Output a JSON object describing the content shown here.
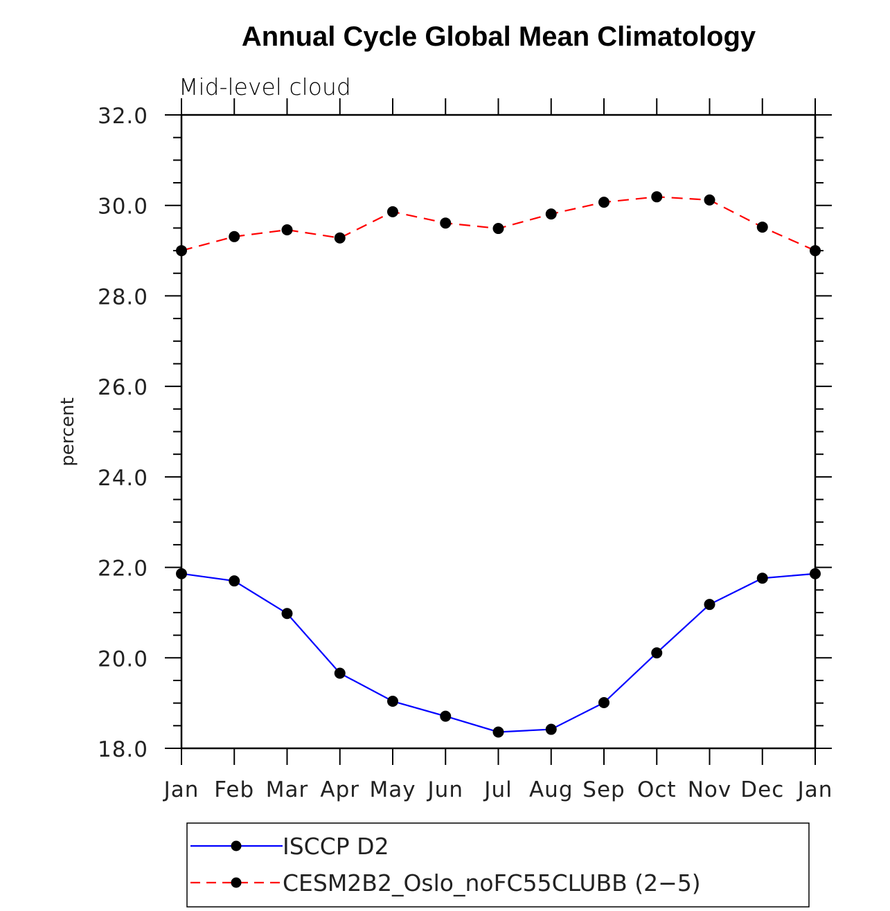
{
  "chart_data": {
    "type": "line",
    "title": "Annual Cycle Global Mean Climatology",
    "subtitle": "Mid-level cloud",
    "xlabel": "",
    "ylabel": "percent",
    "categories": [
      "Jan",
      "Feb",
      "Mar",
      "Apr",
      "May",
      "Jun",
      "Jul",
      "Aug",
      "Sep",
      "Oct",
      "Nov",
      "Dec",
      "Jan"
    ],
    "ylim": [
      18.0,
      32.0
    ],
    "yticks": [
      18.0,
      20.0,
      22.0,
      24.0,
      26.0,
      28.0,
      30.0,
      32.0
    ],
    "ytick_labels": [
      "18.0",
      "20.0",
      "22.0",
      "24.0",
      "26.0",
      "28.0",
      "30.0",
      "32.0"
    ],
    "yminor_step": 0.5,
    "grid": false,
    "legend_position": "bottom",
    "series": [
      {
        "name": "ISCCP D2",
        "color": "#0000ff",
        "dash": "solid",
        "marker": "filled-circle",
        "values": [
          21.86,
          21.7,
          20.98,
          19.66,
          19.04,
          18.71,
          18.36,
          18.42,
          19.01,
          20.11,
          21.18,
          21.76,
          21.86
        ]
      },
      {
        "name": "CESM2B2_Oslo_noFC55CLUBB (2−5)",
        "color": "#ff0000",
        "dash": "dashed",
        "marker": "filled-circle",
        "values": [
          29.0,
          29.31,
          29.46,
          29.28,
          29.86,
          29.61,
          29.49,
          29.81,
          30.07,
          30.19,
          30.12,
          29.52,
          29.0
        ]
      }
    ]
  }
}
